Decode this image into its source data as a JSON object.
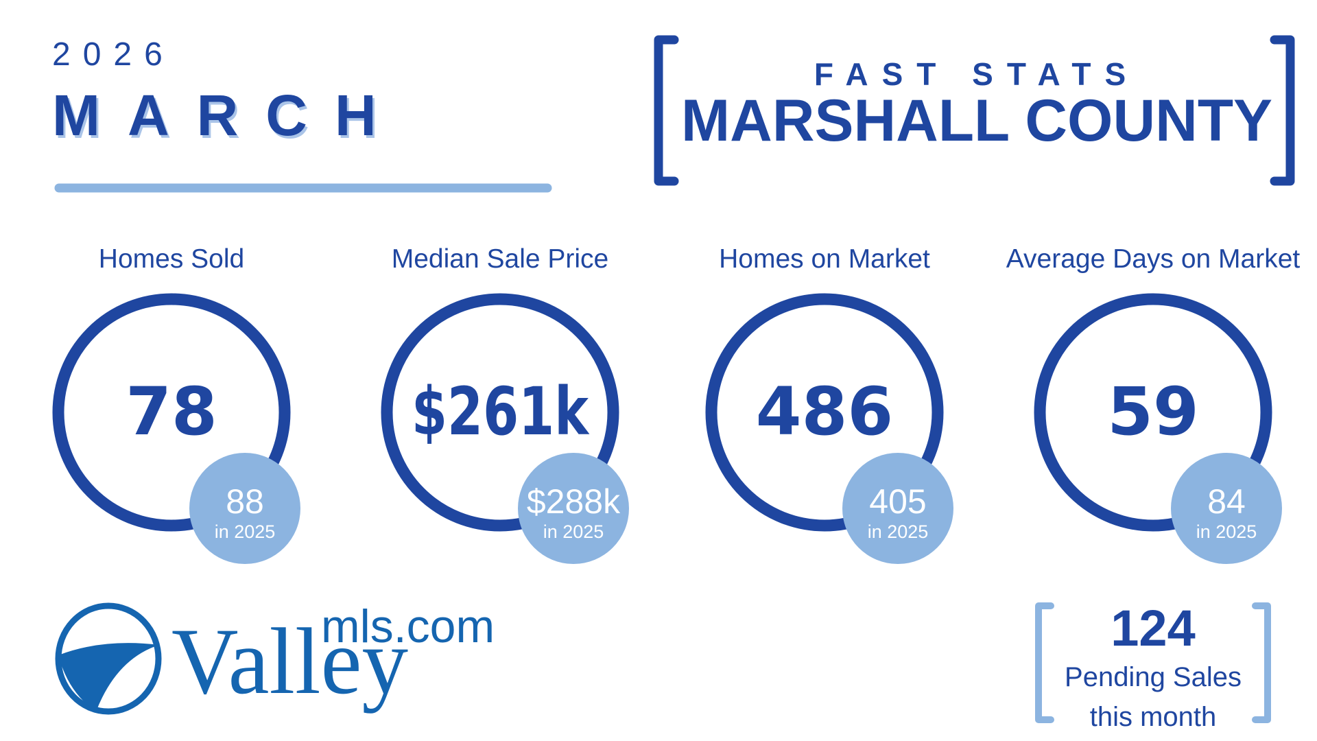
{
  "header": {
    "year": "2026",
    "month": "MARCH",
    "tag": "FAST STATS",
    "county": "MARSHALL COUNTY"
  },
  "stats": [
    {
      "label": "Homes Sold",
      "value": "78",
      "prior": "88",
      "prior_label": "in 2025"
    },
    {
      "label": "Median Sale Price",
      "value": "$261k",
      "prior": "$288k",
      "prior_label": "in 2025"
    },
    {
      "label": "Homes on Market",
      "value": "486",
      "prior": "405",
      "prior_label": "in 2025"
    },
    {
      "label": "Average Days on Market",
      "value": "59",
      "prior": "84",
      "prior_label": "in 2025"
    }
  ],
  "pending": {
    "value": "124",
    "line1": "Pending Sales",
    "line2": "this month"
  },
  "logo": {
    "domain": "mls.com",
    "name": "Valley"
  }
}
